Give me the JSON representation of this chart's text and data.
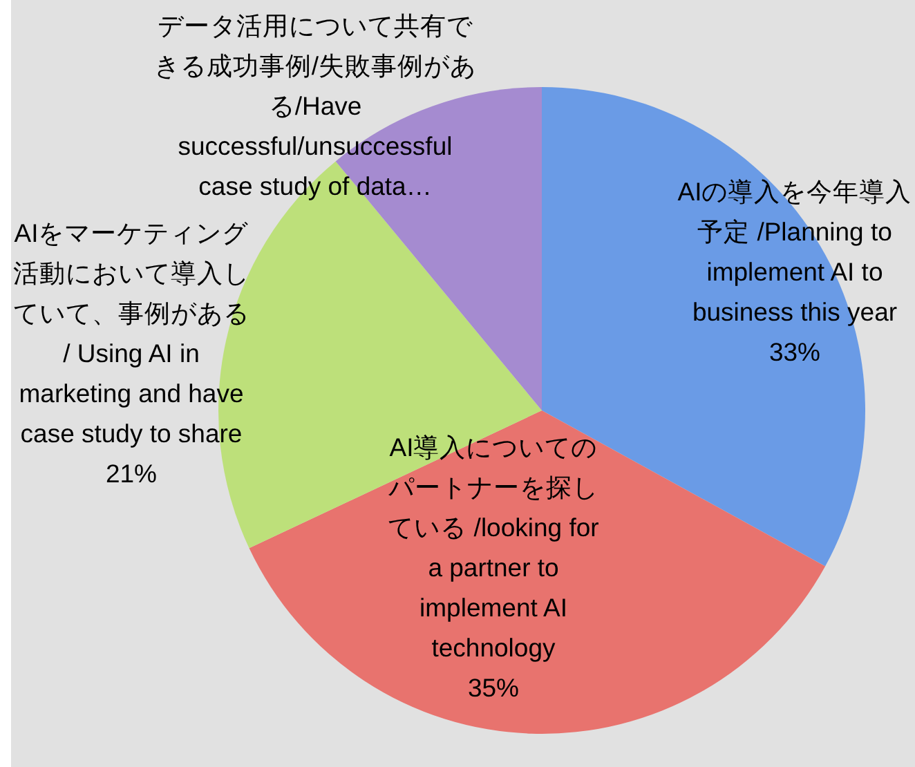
{
  "chart_data": {
    "type": "pie",
    "categories": [
      "AIの導入を今年導入予定 /Planning to implement AI to business this year",
      "AI導入についてのパートナーを探している /looking for a partner to implement AI technology",
      "AIをマーケティング活動において導入していて、事例がある/ Using AI in marketing and have case study to share",
      "データ活用について共有できる成功事例/失敗事例がある/Have successful/unsuccessful case study of data…"
    ],
    "values": [
      33,
      35,
      21,
      11
    ],
    "colors": [
      "#6a9be6",
      "#e8736e",
      "#bde07a",
      "#a58bd0"
    ],
    "value_labels": [
      "33%",
      "35%",
      "21%",
      null
    ]
  }
}
